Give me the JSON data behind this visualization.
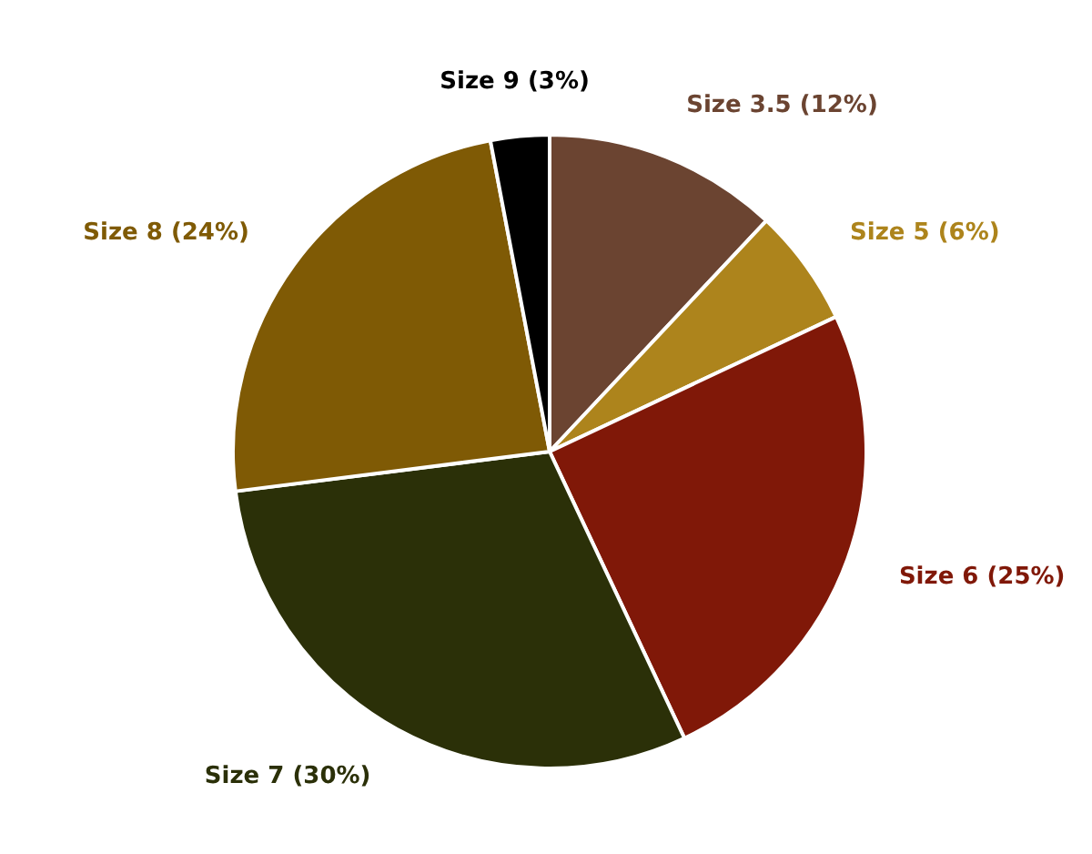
{
  "chart_data": {
    "type": "pie",
    "categories": [
      "Size 3.5",
      "Size 5",
      "Size 6",
      "Size 7",
      "Size 8",
      "Size 9"
    ],
    "values": [
      12,
      6,
      25,
      30,
      24,
      3
    ],
    "value_labels": [
      "(12%)",
      "(6%)",
      "(25%)",
      "(30%)",
      "(24%)",
      "(3%)"
    ],
    "colors": [
      "#6b4431",
      "#ad841c",
      "#801808",
      "#2b3008",
      "#7f5a05",
      "#000000"
    ],
    "legend": false
  }
}
